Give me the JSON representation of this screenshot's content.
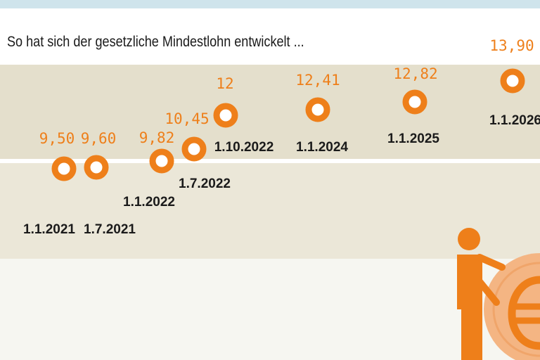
{
  "title": "So hat sich der gesetzliche Mindestlohn entwickelt ...",
  "colors": {
    "accent": "#ee7f1a",
    "coin": "#f4b583",
    "band_upper": "#e4dfcc",
    "band_lower": "#ebe7d8",
    "top_strip": "#cfe4ec"
  },
  "icons": [
    "person-icon",
    "euro-coin-icon"
  ],
  "chart_data": {
    "type": "scatter",
    "title": "So hat sich der gesetzliche Mindestlohn entwickelt ...",
    "xlabel": "",
    "ylabel": "",
    "points": [
      {
        "date": "1.1.2021",
        "value": "9,50"
      },
      {
        "date": "1.7.2021",
        "value": "9,60"
      },
      {
        "date": "1.1.2022",
        "value": "9,82"
      },
      {
        "date": "1.7.2022",
        "value": "10,45"
      },
      {
        "date": "1.10.2022",
        "value": "12"
      },
      {
        "date": "1.1.2024",
        "value": "12,41"
      },
      {
        "date": "1.1.2025",
        "value": "12,82"
      },
      {
        "date": "1.1.2026",
        "value": "13,90"
      }
    ],
    "grid": false,
    "legend": "none"
  }
}
